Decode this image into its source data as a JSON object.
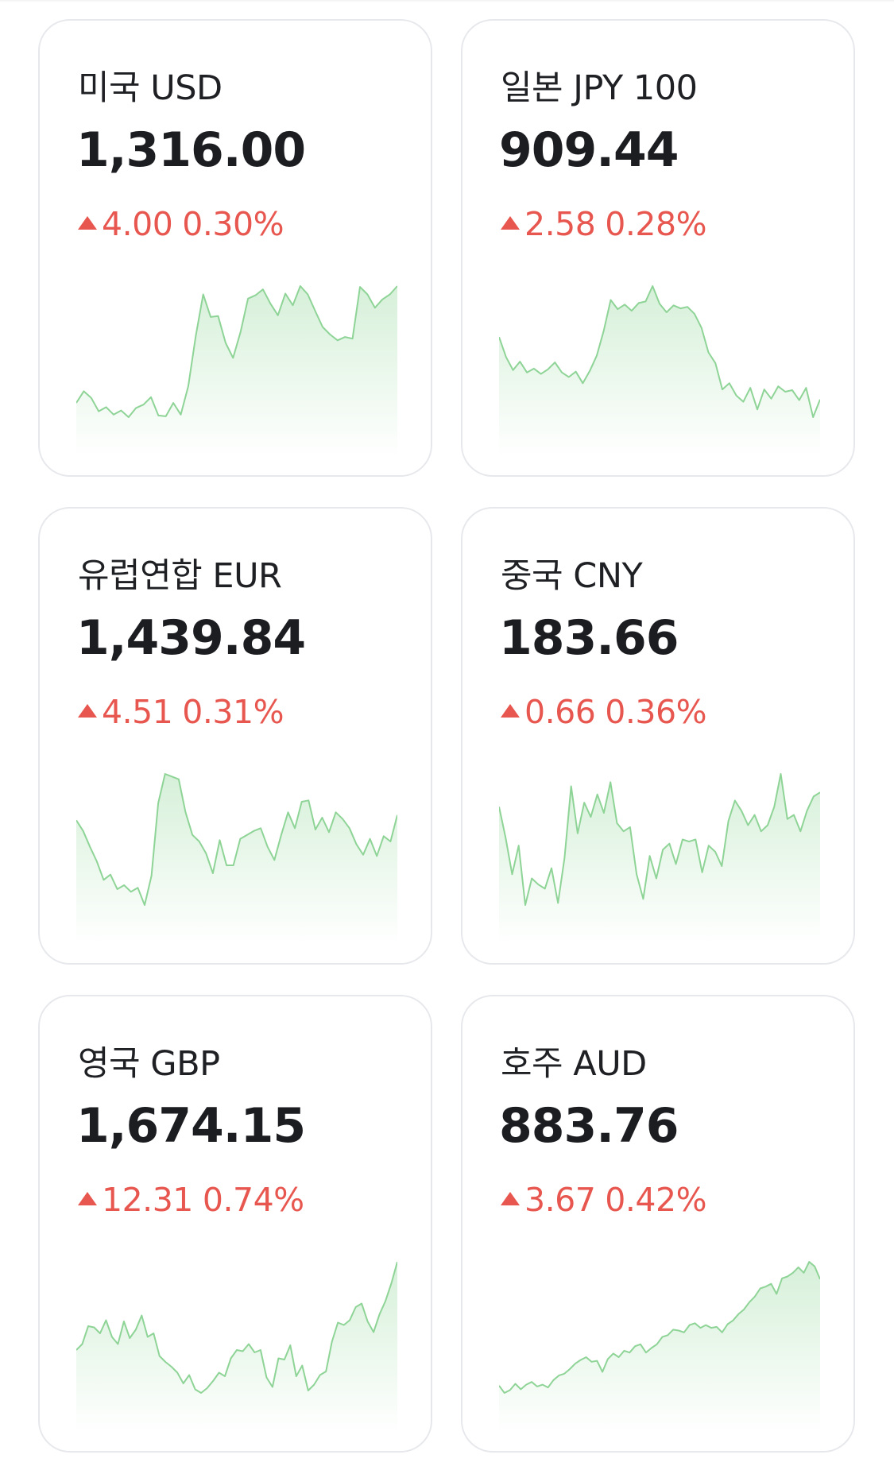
{
  "colors": {
    "up": "#e8574f",
    "line": "#8fd497",
    "fill_top": "#d6f0d9",
    "fill_bottom": "#ffffff",
    "card_border": "#e7e8ec"
  },
  "cards": [
    {
      "name": "미국 USD",
      "rate": "1,316.00",
      "direction_icon": "up-triangle-icon",
      "change": "4.00",
      "percent": "0.30%",
      "trend": [
        20,
        34,
        26,
        10,
        15,
        6,
        11,
        3,
        14,
        18,
        27,
        5,
        4,
        20,
        6,
        40,
        100,
        150,
        123,
        124,
        92,
        74,
        105,
        145,
        149,
        156,
        139,
        125,
        151,
        137,
        160,
        150,
        130,
        111,
        102,
        95,
        99,
        97,
        159,
        150,
        134,
        144,
        150,
        160
      ]
    },
    {
      "name": "일본 JPY 100",
      "rate": "909.44",
      "direction_icon": "up-triangle-icon",
      "change": "2.58",
      "percent": "0.28%",
      "trend": [
        104,
        78,
        61,
        72,
        58,
        63,
        56,
        62,
        71,
        58,
        52,
        59,
        44,
        60,
        80,
        112,
        152,
        140,
        146,
        138,
        148,
        150,
        170,
        147,
        136,
        145,
        141,
        143,
        134,
        116,
        84,
        70,
        36,
        44,
        28,
        20,
        38,
        10,
        36,
        24,
        40,
        33,
        35,
        22,
        38,
        0,
        23
      ]
    },
    {
      "name": "유럽연합 EUR",
      "rate": "1,439.84",
      "direction_icon": "up-triangle-icon",
      "change": "4.51",
      "percent": "0.31%",
      "trend": [
        78,
        70,
        58,
        47,
        33,
        37,
        26,
        29,
        24,
        27,
        14,
        36,
        91,
        113,
        111,
        109,
        84,
        67,
        62,
        53,
        38,
        63,
        44,
        44,
        64,
        67,
        70,
        72,
        58,
        48,
        67,
        84,
        72,
        92,
        93,
        71,
        80,
        69,
        84,
        79,
        72,
        60,
        52,
        64,
        51,
        66,
        62,
        82
      ]
    },
    {
      "name": "중국 CNY",
      "rate": "183.66",
      "direction_icon": "up-triangle-icon",
      "change": "0.66",
      "percent": "0.36%",
      "trend": [
        165,
        150,
        132,
        146,
        117,
        130,
        127,
        125,
        135,
        118,
        140,
        175,
        152,
        167,
        160,
        171,
        162,
        177,
        157,
        153,
        155,
        132,
        120,
        141,
        130,
        144,
        147,
        137,
        149,
        148,
        149,
        133,
        146,
        143,
        136,
        158,
        168,
        163,
        156,
        161,
        153,
        156,
        165,
        181,
        159,
        161,
        153,
        163,
        170,
        172
      ]
    },
    {
      "name": "영국 GBP",
      "rate": "1,674.15",
      "direction_icon": "up-triangle-icon",
      "change": "12.31",
      "percent": "0.74%",
      "trend": [
        81,
        86,
        101,
        100,
        95,
        106,
        92,
        86,
        105,
        91,
        98,
        110,
        92,
        95,
        76,
        71,
        67,
        62,
        53,
        60,
        48,
        45,
        49,
        55,
        62,
        59,
        74,
        81,
        80,
        86,
        79,
        81,
        58,
        50,
        74,
        73,
        85,
        59,
        68,
        47,
        52,
        60,
        63,
        88,
        104,
        102,
        106,
        117,
        120,
        105,
        96,
        111,
        122,
        137,
        155
      ]
    },
    {
      "name": "호주 AUD",
      "rate": "883.76",
      "direction_icon": "up-triangle-icon",
      "change": "3.67",
      "percent": "0.42%",
      "trend": [
        52,
        44,
        47,
        54,
        48,
        53,
        56,
        51,
        53,
        50,
        58,
        63,
        65,
        70,
        76,
        80,
        83,
        78,
        79,
        67,
        81,
        87,
        83,
        90,
        88,
        95,
        97,
        88,
        93,
        97,
        105,
        107,
        113,
        112,
        110,
        118,
        120,
        115,
        118,
        115,
        116,
        110,
        119,
        123,
        130,
        135,
        143,
        149,
        158,
        160,
        163,
        152,
        169,
        171,
        175,
        181,
        175,
        187,
        182,
        168
      ]
    }
  ]
}
